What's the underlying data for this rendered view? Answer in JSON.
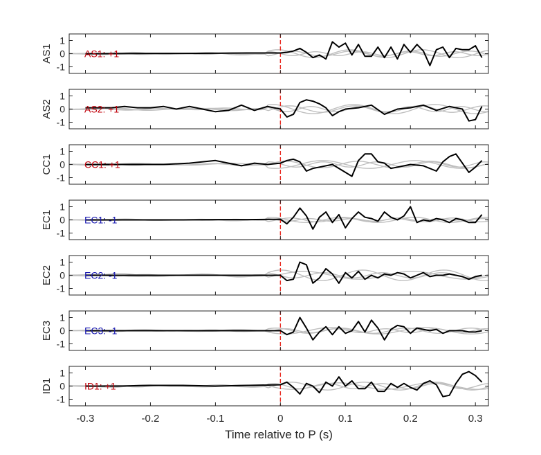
{
  "chart_data": {
    "type": "line",
    "xlabel": "Time relative to P (s)",
    "xlim": [
      -0.325,
      0.32
    ],
    "ylim": [
      -1.5,
      1.5
    ],
    "x_ticks": [
      -0.3,
      -0.2,
      -0.1,
      0,
      0.1,
      0.2,
      0.3
    ],
    "x_tick_labels": [
      "-0.3",
      "-0.2",
      "-0.1",
      "0",
      "0.1",
      "0.2",
      "0.3"
    ],
    "y_ticks": [
      -1,
      0,
      1
    ],
    "y_tick_labels": [
      "-1",
      "0",
      "1"
    ],
    "marker_line": {
      "x": 0,
      "color": "#e8281e",
      "style": "dashed"
    },
    "colors": {
      "trace": "#000000",
      "background_traces": "#bfbfbf",
      "positive_label": "#c0000a",
      "negative_label": "#1515b0"
    },
    "panels": [
      {
        "ylabel": "AS1",
        "annotation": "AS1: +1",
        "annotation_color": "#c0000a",
        "trace": {
          "x": [
            -0.3,
            -0.25,
            -0.2,
            -0.15,
            -0.1,
            -0.05,
            0,
            0.01,
            0.02,
            0.03,
            0.04,
            0.05,
            0.06,
            0.07,
            0.08,
            0.09,
            0.1,
            0.11,
            0.12,
            0.13,
            0.14,
            0.15,
            0.16,
            0.17,
            0.18,
            0.19,
            0.2,
            0.21,
            0.22,
            0.23,
            0.24,
            0.25,
            0.26,
            0.27,
            0.28,
            0.29,
            0.3,
            0.31
          ],
          "y": [
            0,
            0,
            0.02,
            0.02,
            0.03,
            0.05,
            0.05,
            0.1,
            0.2,
            0.4,
            0.1,
            -0.3,
            -0.1,
            -0.4,
            0.9,
            0.5,
            0.8,
            -0.1,
            0.7,
            -0.2,
            -0.2,
            0.5,
            -0.3,
            0.5,
            -0.4,
            0.7,
            0.1,
            0.7,
            0.2,
            -0.9,
            0.3,
            0.5,
            -0.3,
            0.4,
            0.3,
            0.3,
            0.6,
            -0.3
          ]
        },
        "background": [
          {
            "amp": 0.2,
            "freq": 11,
            "phase": 0.3
          },
          {
            "amp": 0.3,
            "freq": 9,
            "phase": 1.8
          },
          {
            "amp": 0.15,
            "freq": 14,
            "phase": 3.1
          }
        ]
      },
      {
        "ylabel": "AS2",
        "annotation": "AS2: +1",
        "annotation_color": "#c0000a",
        "trace": {
          "x": [
            -0.3,
            -0.28,
            -0.26,
            -0.24,
            -0.22,
            -0.2,
            -0.18,
            -0.16,
            -0.14,
            -0.12,
            -0.1,
            -0.08,
            -0.06,
            -0.04,
            -0.02,
            0,
            0.01,
            0.02,
            0.03,
            0.04,
            0.05,
            0.06,
            0.07,
            0.08,
            0.09,
            0.1,
            0.12,
            0.14,
            0.16,
            0.18,
            0.2,
            0.22,
            0.24,
            0.26,
            0.28,
            0.29,
            0.3,
            0.31
          ],
          "y": [
            0.1,
            0.1,
            0.1,
            0.2,
            0.1,
            0.1,
            0.2,
            0,
            0.2,
            0,
            -0.2,
            -0.1,
            0.3,
            -0.1,
            0.2,
            0,
            -0.6,
            -0.4,
            0.5,
            0.7,
            0.6,
            0.4,
            0.1,
            -0.5,
            -0.2,
            0,
            0.1,
            0.3,
            -0.4,
            0,
            0.1,
            0.3,
            -0.1,
            0.2,
            0,
            -0.9,
            -0.8,
            0.2
          ]
        },
        "background": [
          {
            "amp": 0.25,
            "freq": 10,
            "phase": 0.7
          },
          {
            "amp": 0.35,
            "freq": 8,
            "phase": 2.2
          },
          {
            "amp": 0.2,
            "freq": 13,
            "phase": 4.0
          }
        ]
      },
      {
        "ylabel": "CC1",
        "annotation": "CC1: +1",
        "annotation_color": "#c0000a",
        "trace": {
          "x": [
            -0.3,
            -0.26,
            -0.22,
            -0.18,
            -0.14,
            -0.1,
            -0.08,
            -0.06,
            -0.04,
            -0.02,
            0,
            0.01,
            0.02,
            0.03,
            0.04,
            0.05,
            0.06,
            0.08,
            0.1,
            0.11,
            0.12,
            0.13,
            0.14,
            0.15,
            0.16,
            0.17,
            0.18,
            0.2,
            0.22,
            0.24,
            0.25,
            0.26,
            0.27,
            0.28,
            0.29,
            0.3,
            0.31
          ],
          "y": [
            0,
            0,
            0,
            0,
            0.1,
            0.3,
            0.1,
            -0.1,
            0.1,
            0,
            0.1,
            0.3,
            0.4,
            0.2,
            -0.5,
            -0.3,
            -0.2,
            0,
            -0.6,
            -0.9,
            0.3,
            0.8,
            0.8,
            0.2,
            0.1,
            -0.3,
            -0.2,
            0,
            -0.1,
            -0.5,
            0.2,
            0.6,
            0.8,
            0.1,
            -0.6,
            -0.2,
            0.3
          ]
        },
        "background": [
          {
            "amp": 0.25,
            "freq": 9,
            "phase": 1.1
          },
          {
            "amp": 0.2,
            "freq": 12,
            "phase": 2.9
          },
          {
            "amp": 0.3,
            "freq": 7,
            "phase": 5.0
          }
        ]
      },
      {
        "ylabel": "EC1",
        "annotation": "EC1: -1",
        "annotation_color": "#1515b0",
        "trace": {
          "x": [
            -0.3,
            -0.25,
            -0.2,
            -0.15,
            -0.1,
            -0.05,
            0,
            0.01,
            0.02,
            0.03,
            0.04,
            0.05,
            0.06,
            0.07,
            0.08,
            0.09,
            0.1,
            0.11,
            0.12,
            0.13,
            0.14,
            0.15,
            0.16,
            0.17,
            0.18,
            0.19,
            0.2,
            0.21,
            0.22,
            0.23,
            0.24,
            0.25,
            0.26,
            0.27,
            0.28,
            0.29,
            0.3,
            0.31
          ],
          "y": [
            0,
            0,
            0,
            0,
            0.02,
            0.02,
            0.05,
            -0.3,
            0.2,
            0.9,
            0.3,
            -0.7,
            0.2,
            0.6,
            -0.2,
            0.4,
            -0.6,
            0.1,
            0.6,
            0.2,
            0.1,
            -0.1,
            0.6,
            0.2,
            0,
            0.3,
            1,
            -0.2,
            0,
            -0.1,
            0.1,
            0,
            -0.2,
            0.1,
            0,
            -0.2,
            -0.2,
            0.4
          ]
        },
        "background": [
          {
            "amp": 0.15,
            "freq": 12,
            "phase": 0.4
          },
          {
            "amp": 0.2,
            "freq": 9,
            "phase": 2.5
          },
          {
            "amp": 0.1,
            "freq": 15,
            "phase": 3.7
          }
        ]
      },
      {
        "ylabel": "EC2",
        "annotation": "EC2: -1",
        "annotation_color": "#1515b0",
        "trace": {
          "x": [
            -0.3,
            -0.2,
            -0.1,
            0,
            0.01,
            0.02,
            0.03,
            0.04,
            0.05,
            0.06,
            0.07,
            0.08,
            0.09,
            0.1,
            0.11,
            0.12,
            0.13,
            0.14,
            0.15,
            0.16,
            0.17,
            0.18,
            0.19,
            0.2,
            0.21,
            0.22,
            0.23,
            0.24,
            0.25,
            0.26,
            0.27,
            0.28,
            0.29,
            0.3,
            0.31
          ],
          "y": [
            0,
            0,
            0,
            0,
            -0.4,
            -0.3,
            1,
            0.8,
            -0.6,
            -0.2,
            0.5,
            0.1,
            -0.6,
            0.2,
            -0.2,
            0.3,
            -0.3,
            0,
            -0.2,
            0.1,
            0,
            0.2,
            0.1,
            -0.2,
            0,
            0.2,
            -0.1,
            0,
            0,
            0.1,
            0,
            -0.1,
            -0.3,
            -0.1,
            0
          ]
        },
        "background": [
          {
            "amp": 0.4,
            "freq": 8,
            "phase": 1.5
          },
          {
            "amp": 0.3,
            "freq": 6,
            "phase": 0.2
          },
          {
            "amp": 0.2,
            "freq": 11,
            "phase": 3.3
          }
        ]
      },
      {
        "ylabel": "EC3",
        "annotation": "EC3: -1",
        "annotation_color": "#1515b0",
        "trace": {
          "x": [
            -0.3,
            -0.2,
            -0.1,
            0,
            0.01,
            0.02,
            0.03,
            0.04,
            0.05,
            0.06,
            0.07,
            0.08,
            0.09,
            0.1,
            0.11,
            0.12,
            0.13,
            0.14,
            0.15,
            0.16,
            0.17,
            0.18,
            0.19,
            0.2,
            0.21,
            0.22,
            0.23,
            0.24,
            0.25,
            0.26,
            0.27,
            0.28,
            0.29,
            0.3,
            0.31
          ],
          "y": [
            0,
            0,
            0,
            0,
            -0.3,
            -0.1,
            1,
            0.2,
            -0.7,
            -0.1,
            0.3,
            -0.3,
            0.3,
            -0.2,
            0,
            0.7,
            -0.1,
            0.8,
            0.2,
            -0.7,
            0.1,
            0.4,
            0.3,
            -0.2,
            0.2,
            0.1,
            0,
            0.1,
            -0.2,
            0,
            0,
            0,
            -0.1,
            -0.1,
            0
          ]
        },
        "background": [
          {
            "amp": 0.2,
            "freq": 10,
            "phase": 2.0
          },
          {
            "amp": 0.25,
            "freq": 7,
            "phase": 4.4
          },
          {
            "amp": 0.15,
            "freq": 13,
            "phase": 0.9
          }
        ]
      },
      {
        "ylabel": "ID1",
        "annotation": "ID1: +1",
        "annotation_color": "#c0000a",
        "trace": {
          "x": [
            -0.3,
            -0.25,
            -0.2,
            -0.15,
            -0.1,
            -0.05,
            0,
            0.01,
            0.02,
            0.03,
            0.04,
            0.05,
            0.06,
            0.07,
            0.08,
            0.09,
            0.1,
            0.11,
            0.12,
            0.13,
            0.14,
            0.15,
            0.16,
            0.17,
            0.18,
            0.19,
            0.2,
            0.21,
            0.22,
            0.23,
            0.24,
            0.25,
            0.26,
            0.27,
            0.28,
            0.29,
            0.3,
            0.31
          ],
          "y": [
            0,
            0,
            0.05,
            0.05,
            0,
            0.05,
            0.1,
            0.3,
            -0.1,
            -0.6,
            0.2,
            0,
            -0.5,
            0.3,
            0,
            0.7,
            0,
            0.4,
            -0.2,
            -0.2,
            0.3,
            -0.4,
            -0.4,
            0.2,
            -0.1,
            0.2,
            -0.1,
            -0.3,
            0.2,
            0.4,
            0.1,
            -0.8,
            -0.7,
            0.2,
            0.9,
            1.1,
            0.8,
            0.3
          ]
        },
        "background": [
          {
            "amp": 0.3,
            "freq": 9,
            "phase": 0.6
          },
          {
            "amp": 0.2,
            "freq": 12,
            "phase": 2.4
          },
          {
            "amp": 0.25,
            "freq": 7,
            "phase": 3.9
          }
        ]
      }
    ]
  }
}
